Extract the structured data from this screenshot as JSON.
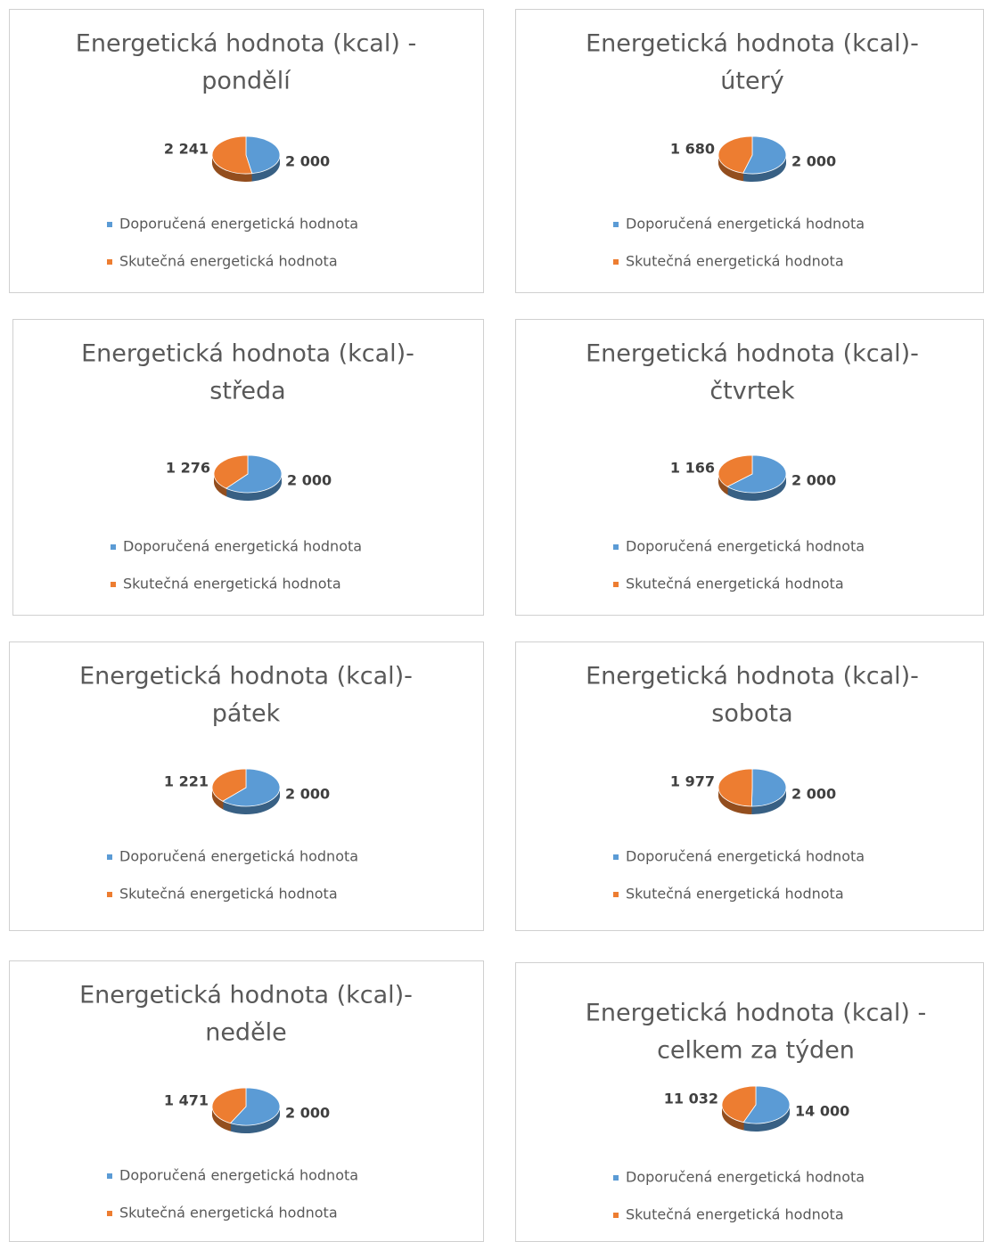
{
  "chart_data": [
    {
      "type": "pie",
      "title": [
        "Energetická hodnota (kcal) -",
        "pondělí"
      ],
      "categories": [
        "Doporučená energetická hodnota",
        "Skutečná energetická hodnota"
      ],
      "values": [
        2000,
        2241
      ],
      "value_labels": [
        "2 000",
        "2 241"
      ],
      "colors": [
        "#5b9bd5",
        "#ed7d31"
      ],
      "legend": "bottom"
    },
    {
      "type": "pie",
      "title": [
        "Energetická hodnota (kcal)-",
        "úterý"
      ],
      "categories": [
        "Doporučená energetická hodnota",
        "Skutečná energetická hodnota"
      ],
      "values": [
        2000,
        1680
      ],
      "value_labels": [
        "2 000",
        "1 680"
      ],
      "colors": [
        "#5b9bd5",
        "#ed7d31"
      ],
      "legend": "bottom"
    },
    {
      "type": "pie",
      "title": [
        "Energetická hodnota (kcal)-",
        "středa"
      ],
      "categories": [
        "Doporučená energetická hodnota",
        "Skutečná energetická hodnota"
      ],
      "values": [
        2000,
        1276
      ],
      "value_labels": [
        "2 000",
        "1 276"
      ],
      "colors": [
        "#5b9bd5",
        "#ed7d31"
      ],
      "legend": "bottom"
    },
    {
      "type": "pie",
      "title": [
        "Energetická hodnota (kcal)-",
        "čtvrtek"
      ],
      "categories": [
        "Doporučená energetická hodnota",
        "Skutečná energetická hodnota"
      ],
      "values": [
        2000,
        1166
      ],
      "value_labels": [
        "2 000",
        "1 166"
      ],
      "colors": [
        "#5b9bd5",
        "#ed7d31"
      ],
      "legend": "bottom"
    },
    {
      "type": "pie",
      "title": [
        "Energetická hodnota (kcal)-",
        "pátek"
      ],
      "categories": [
        "Doporučená energetická hodnota",
        "Skutečná energetická hodnota"
      ],
      "values": [
        2000,
        1221
      ],
      "value_labels": [
        "2 000",
        "1 221"
      ],
      "colors": [
        "#5b9bd5",
        "#ed7d31"
      ],
      "legend": "bottom"
    },
    {
      "type": "pie",
      "title": [
        "Energetická hodnota (kcal)-",
        "sobota"
      ],
      "categories": [
        "Doporučená energetická hodnota",
        "Skutečná energetická hodnota"
      ],
      "values": [
        2000,
        1977
      ],
      "value_labels": [
        "2 000",
        "1 977"
      ],
      "colors": [
        "#5b9bd5",
        "#ed7d31"
      ],
      "legend": "bottom"
    },
    {
      "type": "pie",
      "title": [
        "Energetická hodnota (kcal)-",
        "neděle"
      ],
      "categories": [
        "Doporučená energetická hodnota",
        "Skutečná energetická hodnota"
      ],
      "values": [
        2000,
        1471
      ],
      "value_labels": [
        "2 000",
        "1 471"
      ],
      "colors": [
        "#5b9bd5",
        "#ed7d31"
      ],
      "legend": "bottom"
    },
    {
      "type": "pie",
      "title": [
        "Energetická hodnota (kcal) -",
        "celkem za týden"
      ],
      "categories": [
        "Doporučená energetická hodnota",
        "Skutečná energetická hodnota"
      ],
      "values": [
        14000,
        11032
      ],
      "value_labels": [
        "14 000",
        "11 032"
      ],
      "colors": [
        "#5b9bd5",
        "#ed7d31"
      ],
      "legend": "bottom"
    }
  ]
}
